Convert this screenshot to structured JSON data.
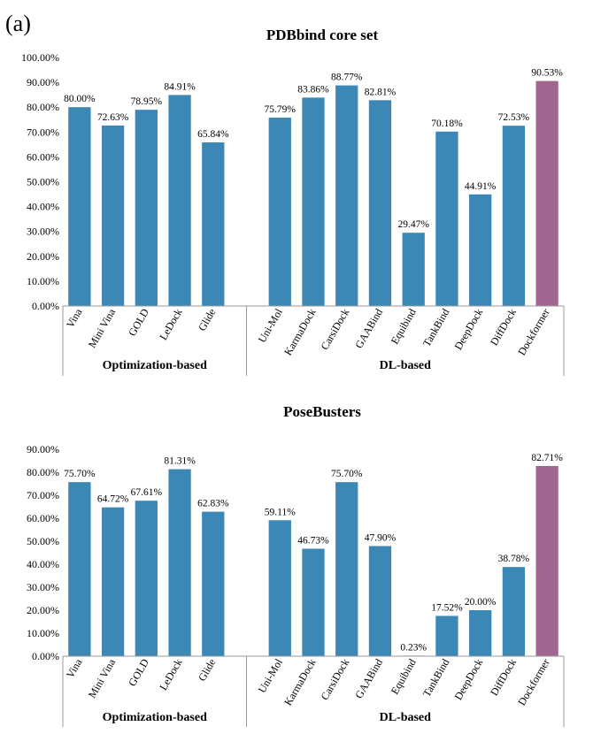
{
  "panel_label": "(a)",
  "colors": {
    "standard": "#3b87b5",
    "highlight": "#a0668f",
    "axis": "#999999"
  },
  "chart_data": [
    {
      "type": "bar",
      "title": "PDBbind core set",
      "categories": [
        "Vina",
        "Mini Vina",
        "GOLD",
        "LeDock",
        "Glide",
        "Uni-Mol",
        "KarmaDock",
        "CarsiDock",
        "GAABind",
        "Equibind",
        "TankBind",
        "DeepDock",
        "DiffDock",
        "Dockformer"
      ],
      "values": [
        80.0,
        72.63,
        78.95,
        84.91,
        65.84,
        75.79,
        83.86,
        88.77,
        82.81,
        29.47,
        70.18,
        44.91,
        72.53,
        90.53
      ],
      "value_labels": [
        "80.00%",
        "72.63%",
        "78.95%",
        "84.91%",
        "65.84%",
        "75.79%",
        "83.86%",
        "88.77%",
        "82.81%",
        "29.47%",
        "70.18%",
        "44.91%",
        "72.53%",
        "90.53%"
      ],
      "highlight": [
        "Dockformer"
      ],
      "groups": [
        {
          "name": "Optimization-based",
          "categories": [
            "Vina",
            "Mini Vina",
            "GOLD",
            "LeDock",
            "Glide"
          ]
        },
        {
          "name": "DL-based",
          "categories": [
            "Uni-Mol",
            "KarmaDock",
            "CarsiDock",
            "GAABind",
            "Equibind",
            "TankBind",
            "DeepDock",
            "DiffDock",
            "Dockformer"
          ]
        }
      ],
      "ylim": [
        0,
        100
      ],
      "yticks": [
        "0.00%",
        "10.00%",
        "20.00%",
        "30.00%",
        "40.00%",
        "50.00%",
        "60.00%",
        "70.00%",
        "80.00%",
        "90.00%",
        "100.00%"
      ],
      "xlabel": "",
      "ylabel": ""
    },
    {
      "type": "bar",
      "title": "PoseBusters",
      "categories": [
        "Vina",
        "Mini Vina",
        "GOLD",
        "LeDock",
        "Glide",
        "Uni-Mol",
        "KarmaDock",
        "CarsiDock",
        "GAABind",
        "Equibind",
        "TankBind",
        "DeepDock",
        "DiffDock",
        "Dockformer"
      ],
      "values": [
        75.7,
        64.72,
        67.61,
        81.31,
        62.83,
        59.11,
        46.73,
        75.7,
        47.9,
        0.23,
        17.52,
        20.0,
        38.78,
        82.71
      ],
      "value_labels": [
        "75.70%",
        "64.72%",
        "67.61%",
        "81.31%",
        "62.83%",
        "59.11%",
        "46.73%",
        "75.70%",
        "47.90%",
        "0.23%",
        "17.52%",
        "20.00%",
        "38.78%",
        "82.71%"
      ],
      "highlight": [
        "Dockformer"
      ],
      "groups": [
        {
          "name": "Optimization-based",
          "categories": [
            "Vina",
            "Mini Vina",
            "GOLD",
            "LeDock",
            "Glide"
          ]
        },
        {
          "name": "DL-based",
          "categories": [
            "Uni-Mol",
            "KarmaDock",
            "CarsiDock",
            "GAABind",
            "Equibind",
            "TankBind",
            "DeepDock",
            "DiffDock",
            "Dockformer"
          ]
        }
      ],
      "ylim": [
        0,
        90
      ],
      "yticks": [
        "0.00%",
        "10.00%",
        "20.00%",
        "30.00%",
        "40.00%",
        "50.00%",
        "60.00%",
        "70.00%",
        "80.00%",
        "90.00%"
      ],
      "xlabel": "",
      "ylabel": ""
    }
  ]
}
